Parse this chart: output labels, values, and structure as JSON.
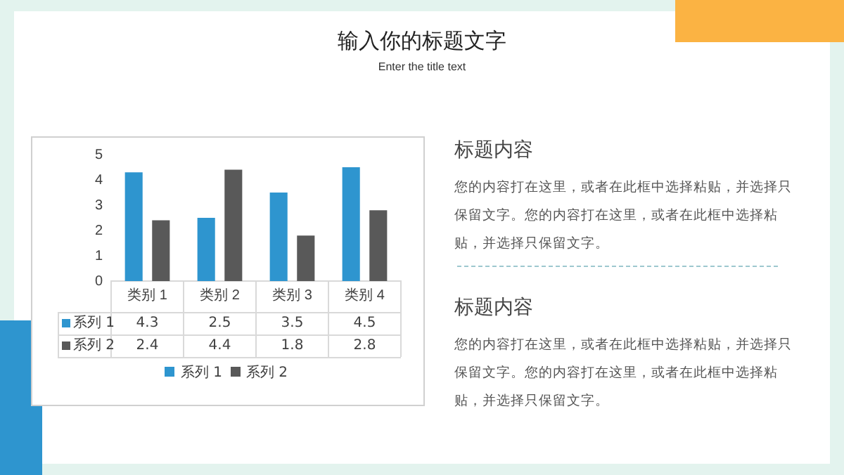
{
  "chart_data": {
    "type": "bar",
    "title": "输入你的标题文字",
    "subtitle": "Enter the title text",
    "categories": [
      "类别 1",
      "类别 2",
      "类别 3",
      "类别 4"
    ],
    "series": [
      {
        "name": "系列 1",
        "color": "#2e95cf",
        "values": [
          4.3,
          2.5,
          3.5,
          4.5
        ]
      },
      {
        "name": "系列 2",
        "color": "#595959",
        "values": [
          2.4,
          4.4,
          1.8,
          2.8
        ]
      }
    ],
    "ylim": [
      0,
      5
    ],
    "yticks": [
      0,
      1,
      2,
      3,
      4,
      5
    ],
    "grid": false,
    "legend": "bottom",
    "data_labels": true,
    "annotations": [
      "标题内容",
      "您的内容打在这里，或者在此框中选择粘贴，并选择只保留文字。您的内容打在这里，或者在此框中选择粘贴，并选择只保留文字。",
      "标题内容",
      "您的内容打在这里，或者在此框中选择粘贴，并选择只保留文字。您的内容打在这里，或者在此框中选择粘贴，并选择只保留文字。"
    ]
  }
}
